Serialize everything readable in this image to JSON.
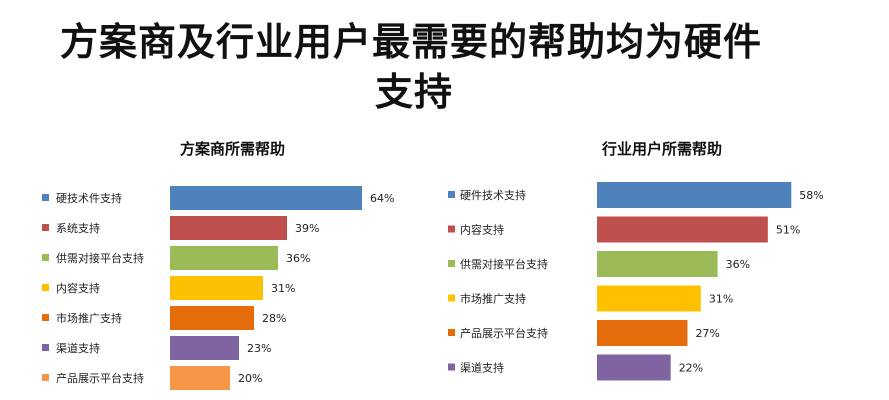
{
  "headline": {
    "line1": "方案商及行业用户最需要的帮助均为硬件",
    "line2": "支持"
  },
  "chart_data": [
    {
      "type": "bar",
      "orientation": "horizontal",
      "title": "方案商所需帮助",
      "categories": [
        "硬技术件支持",
        "系统支持",
        "供需对接平台支持",
        "内容支持",
        "市场推广支持",
        "渠道支持",
        "产品展示平台支持"
      ],
      "values": [
        64,
        39,
        36,
        31,
        28,
        23,
        20
      ],
      "value_labels": [
        "64%",
        "39%",
        "36%",
        "31%",
        "28%",
        "23%",
        "20%"
      ],
      "colors": [
        "#4f81bd",
        "#c0504d",
        "#9bbb59",
        "#ffc000",
        "#e46c0a",
        "#8064a2",
        "#f79646"
      ],
      "unit": "%",
      "legend": "left"
    },
    {
      "type": "bar",
      "orientation": "horizontal",
      "title": "行业用户所需帮助",
      "categories": [
        "硬件技术支持",
        "内容支持",
        "供需对接平台支持",
        "市场推广支持",
        "产品展示平台支持",
        "渠道支持"
      ],
      "values": [
        58,
        51,
        36,
        31,
        27,
        22
      ],
      "value_labels": [
        "58%",
        "51%",
        "36%",
        "31%",
        "27%",
        "22%"
      ],
      "colors": [
        "#4f81bd",
        "#c0504d",
        "#9bbb59",
        "#ffc000",
        "#e46c0a",
        "#8064a2"
      ],
      "unit": "%",
      "legend": "left"
    }
  ]
}
